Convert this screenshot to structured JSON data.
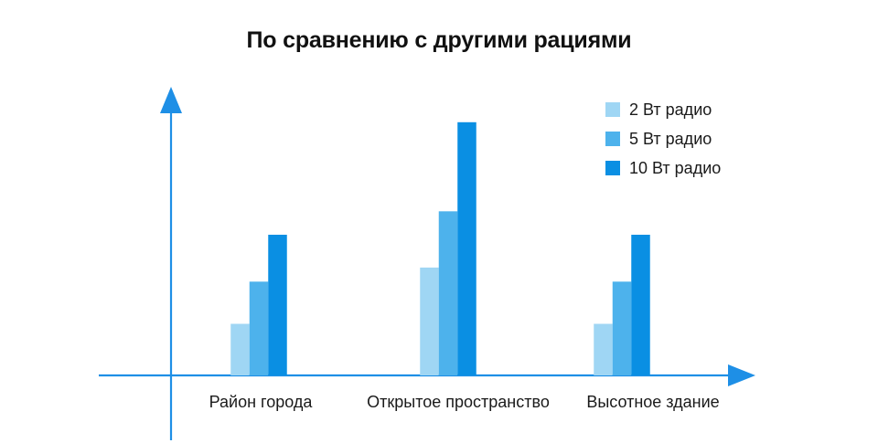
{
  "chart_data": {
    "type": "bar",
    "title": "По сравнению с другими рациями",
    "xlabel": "",
    "ylabel": "",
    "categories": [
      "Район города",
      "Открытое пространство",
      "Высотное здание"
    ],
    "series": [
      {
        "name": "2 Вт радио",
        "color": "#9fd6f4",
        "values": [
          1.1,
          2.3,
          1.1
        ]
      },
      {
        "name": "5 Вт радио",
        "color": "#4db2ec",
        "values": [
          2.0,
          3.5,
          2.0
        ]
      },
      {
        "name": "10 Вт радио",
        "color": "#0a8fe3",
        "values": [
          3.0,
          5.4,
          3.0
        ]
      }
    ],
    "ylim": [
      0,
      6
    ],
    "axis_color": "#1e8fe6",
    "grid": false,
    "axis_ticks": false,
    "legend_position": "top-right"
  }
}
